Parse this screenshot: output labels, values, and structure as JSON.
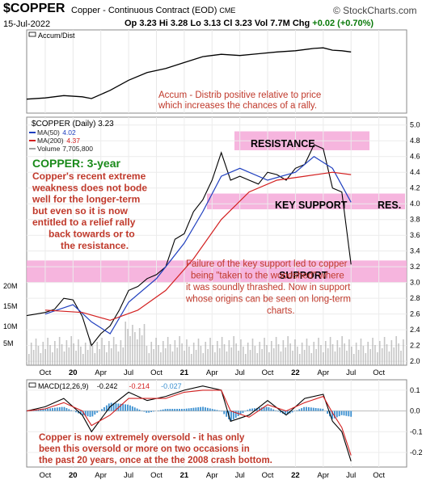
{
  "header": {
    "symbol": "$COPPER",
    "description": "Copper - Continuous Contract (EOD)",
    "exchange": "CME",
    "brand": "© StockCharts.com",
    "date": "15-Jul-2022",
    "open_label": "Op",
    "open": "3.23",
    "high_label": "Hi",
    "high": "3.28",
    "low_label": "Lo",
    "low": "3.13",
    "close_label": "Cl",
    "close": "3.23",
    "volume_label": "Vol",
    "volume": "7.7M",
    "change_label": "Chg",
    "change": "+0.02 (+0.70%)"
  },
  "colors": {
    "price": "#000000",
    "ma50": "#1f3fbf",
    "ma200": "#d32020",
    "zone": "#f5a8d8",
    "annotation_red": "#c0392b",
    "annotation_green": "#1a8a1a",
    "macd_hist": "#3a8fd0",
    "volume": "#a0a0a0"
  },
  "chart_data": [
    {
      "type": "line",
      "legend": "Accum/Dist",
      "annotation": "Accum - Distrib positive relative to price which increases the chances of a rally.",
      "x": [
        "2019-08",
        "2019-10",
        "2019-12",
        "2020-02",
        "2020-03",
        "2020-05",
        "2020-07",
        "2020-09",
        "2020-11",
        "2021-01",
        "2021-03",
        "2021-05",
        "2021-07",
        "2021-09",
        "2021-11",
        "2022-01",
        "2022-03",
        "2022-04",
        "2022-05",
        "2022-06",
        "2022-07"
      ],
      "y": [
        10,
        12,
        16,
        14,
        11,
        25,
        42,
        55,
        62,
        72,
        82,
        86,
        84,
        87,
        90,
        92,
        96,
        97,
        93,
        92,
        90
      ]
    },
    {
      "type": "line",
      "title": "$COPPER (Daily) 3.23",
      "legend": [
        {
          "name": "MA(50)",
          "value": "4.02"
        },
        {
          "name": "MA(200)",
          "value": "4.37"
        },
        {
          "name": "Volume",
          "value": "7,705,800"
        }
      ],
      "ylim": [
        1.95,
        5.1
      ],
      "yticks": [
        "5.0",
        "4.8",
        "4.6",
        "4.4",
        "4.2",
        "4.0",
        "3.8",
        "3.6",
        "3.4",
        "3.2",
        "3.0",
        "2.8",
        "2.6",
        "2.4",
        "2.2",
        "2.0"
      ],
      "volume_ticks": [
        "20M",
        "15M",
        "10M",
        "5M"
      ],
      "xticks": [
        "Oct",
        "20",
        "Apr",
        "Jul",
        "Oct",
        "21",
        "Apr",
        "Jul",
        "Oct",
        "22",
        "Apr",
        "Jul",
        "Oct"
      ],
      "zones": [
        {
          "label": "RESISTANCE",
          "from": 4.68,
          "to": 4.92
        },
        {
          "label": "KEY SUPPORT",
          "from": 3.93,
          "to": 4.13
        },
        {
          "label": "SUPPORT",
          "from": 3.0,
          "to": 3.28
        }
      ],
      "side_label": "RES.",
      "series": [
        {
          "name": "Price",
          "x": [
            "2019-08",
            "2019-09",
            "2019-10",
            "2019-11",
            "2019-12",
            "2020-01",
            "2020-02",
            "2020-03",
            "2020-04",
            "2020-05",
            "2020-06",
            "2020-07",
            "2020-08",
            "2020-09",
            "2020-10",
            "2020-11",
            "2020-12",
            "2021-01",
            "2021-02",
            "2021-03",
            "2021-04",
            "2021-05",
            "2021-06",
            "2021-07",
            "2021-08",
            "2021-09",
            "2021-10",
            "2021-11",
            "2021-12",
            "2022-01",
            "2022-02",
            "2022-03",
            "2022-04",
            "2022-05",
            "2022-06",
            "2022-07"
          ],
          "values": [
            2.58,
            2.6,
            2.62,
            2.66,
            2.8,
            2.78,
            2.57,
            2.2,
            2.35,
            2.45,
            2.65,
            2.9,
            2.95,
            3.05,
            3.1,
            3.2,
            3.55,
            3.62,
            3.9,
            4.05,
            4.3,
            4.65,
            4.3,
            4.35,
            4.3,
            4.25,
            4.4,
            4.37,
            4.3,
            4.45,
            4.5,
            4.75,
            4.7,
            4.2,
            4.15,
            3.23
          ]
        },
        {
          "name": "MA(50)",
          "x": [
            "2019-10",
            "2020-01",
            "2020-03",
            "2020-05",
            "2020-07",
            "2020-10",
            "2021-01",
            "2021-03",
            "2021-05",
            "2021-07",
            "2021-10",
            "2022-01",
            "2022-03",
            "2022-05",
            "2022-07"
          ],
          "values": [
            2.6,
            2.72,
            2.5,
            2.35,
            2.75,
            3.05,
            3.5,
            3.9,
            4.35,
            4.45,
            4.3,
            4.4,
            4.6,
            4.45,
            4.02
          ]
        },
        {
          "name": "MA(200)",
          "x": [
            "2019-10",
            "2020-02",
            "2020-05",
            "2020-08",
            "2020-11",
            "2021-02",
            "2021-05",
            "2021-08",
            "2021-11",
            "2022-02",
            "2022-05",
            "2022-07"
          ],
          "values": [
            2.65,
            2.62,
            2.52,
            2.65,
            2.9,
            3.3,
            3.8,
            4.15,
            4.3,
            4.35,
            4.4,
            4.37
          ]
        }
      ],
      "annotations": [
        {
          "text": "COPPER: 3-year",
          "color": "green"
        },
        {
          "text": "Copper's recent extreme weakness does not bode well for the longer-term but even so it is now entitled to a relief rally back towards or to the resistance.",
          "color": "red"
        },
        {
          "text": "Failure of the key support led to copper being \"taken to the woodshed\" where it was soundly thrashed. Now in support whose origins can be seen on long-term charts.",
          "color": "red"
        }
      ]
    },
    {
      "type": "line",
      "legend": "MACD(12,26,9)",
      "values_text": [
        "-0.242",
        "-0.214",
        "-0.027"
      ],
      "ylim": [
        -0.27,
        0.15
      ],
      "yticks": [
        "0.1",
        "0.0",
        "-0.1",
        "-0.2"
      ],
      "xticks": [
        "Oct",
        "20",
        "Apr",
        "Jul",
        "Oct",
        "21",
        "Apr",
        "Jul",
        "Oct",
        "22",
        "Apr",
        "Jul",
        "Oct"
      ],
      "series": [
        {
          "name": "MACD",
          "x": [
            "2019-08",
            "2019-10",
            "2019-12",
            "2020-02",
            "2020-03",
            "2020-05",
            "2020-07",
            "2020-09",
            "2020-11",
            "2021-01",
            "2021-03",
            "2021-05",
            "2021-06",
            "2021-08",
            "2021-10",
            "2021-12",
            "2022-02",
            "2022-04",
            "2022-05",
            "2022-06",
            "2022-07"
          ],
          "values": [
            0.0,
            0.02,
            0.06,
            -0.02,
            -0.1,
            0.02,
            0.09,
            0.05,
            0.07,
            0.1,
            0.12,
            0.1,
            -0.05,
            -0.02,
            0.05,
            -0.02,
            0.06,
            0.08,
            -0.05,
            -0.1,
            -0.242
          ]
        },
        {
          "name": "Signal",
          "x": [
            "2019-08",
            "2019-10",
            "2019-12",
            "2020-02",
            "2020-03",
            "2020-05",
            "2020-07",
            "2020-09",
            "2020-11",
            "2021-01",
            "2021-03",
            "2021-05",
            "2021-06",
            "2021-08",
            "2021-10",
            "2021-12",
            "2022-02",
            "2022-04",
            "2022-05",
            "2022-06",
            "2022-07"
          ],
          "values": [
            0.0,
            0.01,
            0.04,
            0.0,
            -0.07,
            -0.02,
            0.06,
            0.06,
            0.06,
            0.09,
            0.1,
            0.1,
            0.0,
            -0.03,
            0.03,
            0.0,
            0.04,
            0.07,
            -0.01,
            -0.08,
            -0.214
          ]
        }
      ],
      "annotation": "Copper is now extremely oversold - it has only been this oversold or more on two occasions in the past 20 years, once at the the 2008 crash bottom."
    }
  ]
}
